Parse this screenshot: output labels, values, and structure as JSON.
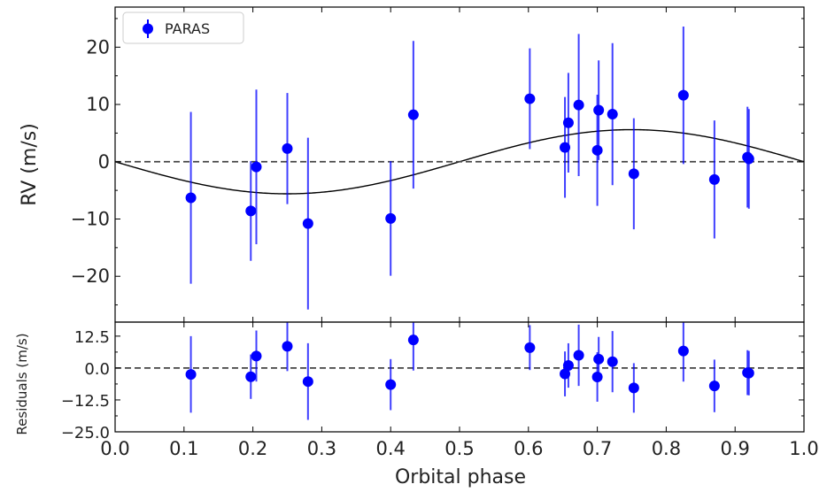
{
  "chart_data": [
    {
      "type": "scatter",
      "panel": "top",
      "ylabel": "RV (m/s)",
      "ylim": [
        -28,
        27
      ],
      "yticks": [
        20,
        10,
        0,
        -10,
        -20
      ],
      "ytick_labels": [
        "20",
        "10",
        "0",
        "−10",
        "−20"
      ],
      "xlim": [
        0,
        1
      ],
      "grid": false,
      "legend": {
        "placement": "top-left",
        "label": "PARAS"
      },
      "series": [
        {
          "name": "PARAS",
          "kind": "errorbar",
          "color": "#0000ff",
          "points": [
            {
              "x": 0.11,
              "y": -6.3,
              "err": 15.0
            },
            {
              "x": 0.197,
              "y": -8.6,
              "err": 8.7
            },
            {
              "x": 0.205,
              "y": -0.9,
              "err": 13.5
            },
            {
              "x": 0.25,
              "y": 2.3,
              "err": 9.7
            },
            {
              "x": 0.28,
              "y": -10.8,
              "err": 15.0
            },
            {
              "x": 0.4,
              "y": -9.9,
              "err": 10.0
            },
            {
              "x": 0.433,
              "y": 8.2,
              "err": 12.9
            },
            {
              "x": 0.602,
              "y": 11.0,
              "err": 8.8
            },
            {
              "x": 0.653,
              "y": 2.5,
              "err": 8.8
            },
            {
              "x": 0.658,
              "y": 6.8,
              "err": 8.7
            },
            {
              "x": 0.673,
              "y": 9.9,
              "err": 12.4
            },
            {
              "x": 0.7,
              "y": 2.0,
              "err": 9.7
            },
            {
              "x": 0.702,
              "y": 9.0,
              "err": 8.7
            },
            {
              "x": 0.722,
              "y": 8.3,
              "err": 12.4
            },
            {
              "x": 0.753,
              "y": -2.1,
              "err": 9.7
            },
            {
              "x": 0.825,
              "y": 11.6,
              "err": 12.0
            },
            {
              "x": 0.87,
              "y": -3.1,
              "err": 10.3
            },
            {
              "x": 0.918,
              "y": 0.8,
              "err": 8.8
            },
            {
              "x": 0.92,
              "y": 0.5,
              "err": 8.7
            }
          ]
        },
        {
          "kind": "model",
          "color": "#000000",
          "description": "sinusoid RV = -K*sin(2*pi*phase)",
          "K": 5.6
        },
        {
          "kind": "hline",
          "y": 0,
          "style": "dashed",
          "color": "#444444"
        }
      ]
    },
    {
      "type": "scatter",
      "panel": "bottom",
      "xlabel": "Orbital phase",
      "ylabel": "Residuals (m/s)",
      "ylim": [
        -25,
        18
      ],
      "yticks": [
        12.5,
        0.0,
        -12.5,
        -25.0
      ],
      "ytick_labels": [
        "12.5",
        "0.0",
        "−12.5",
        "−25.0"
      ],
      "xticks": [
        0.0,
        0.1,
        0.2,
        0.3,
        0.4,
        0.5,
        0.6,
        0.7,
        0.8,
        0.9,
        1.0
      ],
      "xtick_labels": [
        "0.0",
        "0.1",
        "0.2",
        "0.3",
        "0.4",
        "0.5",
        "0.6",
        "0.7",
        "0.8",
        "0.9",
        "1.0"
      ],
      "xlim": [
        0,
        1
      ],
      "grid": false,
      "series": [
        {
          "name": "PARAS",
          "kind": "errorbar",
          "color": "#0000ff",
          "points": [
            {
              "x": 0.11,
              "y": -2.5,
              "err": 15.0
            },
            {
              "x": 0.197,
              "y": -3.4,
              "err": 8.7
            },
            {
              "x": 0.205,
              "y": 4.7,
              "err": 10.0
            },
            {
              "x": 0.25,
              "y": 8.5,
              "err": 9.7
            },
            {
              "x": 0.28,
              "y": -5.3,
              "err": 15.0
            },
            {
              "x": 0.4,
              "y": -6.5,
              "err": 10.0
            },
            {
              "x": 0.433,
              "y": 11.0,
              "err": 12.0
            },
            {
              "x": 0.602,
              "y": 8.0,
              "err": 8.8
            },
            {
              "x": 0.653,
              "y": -2.3,
              "err": 8.8
            },
            {
              "x": 0.658,
              "y": 1.0,
              "err": 8.7
            },
            {
              "x": 0.673,
              "y": 5.0,
              "err": 12.0
            },
            {
              "x": 0.7,
              "y": -3.5,
              "err": 9.7
            },
            {
              "x": 0.702,
              "y": 3.5,
              "err": 8.7
            },
            {
              "x": 0.722,
              "y": 2.5,
              "err": 12.0
            },
            {
              "x": 0.753,
              "y": -7.8,
              "err": 9.7
            },
            {
              "x": 0.825,
              "y": 6.7,
              "err": 12.0
            },
            {
              "x": 0.87,
              "y": -7.0,
              "err": 10.3
            },
            {
              "x": 0.918,
              "y": -1.8,
              "err": 8.8
            },
            {
              "x": 0.92,
              "y": -2.0,
              "err": 8.7
            }
          ]
        },
        {
          "kind": "hline",
          "y": 0,
          "style": "dashed",
          "color": "#444444"
        }
      ]
    }
  ]
}
